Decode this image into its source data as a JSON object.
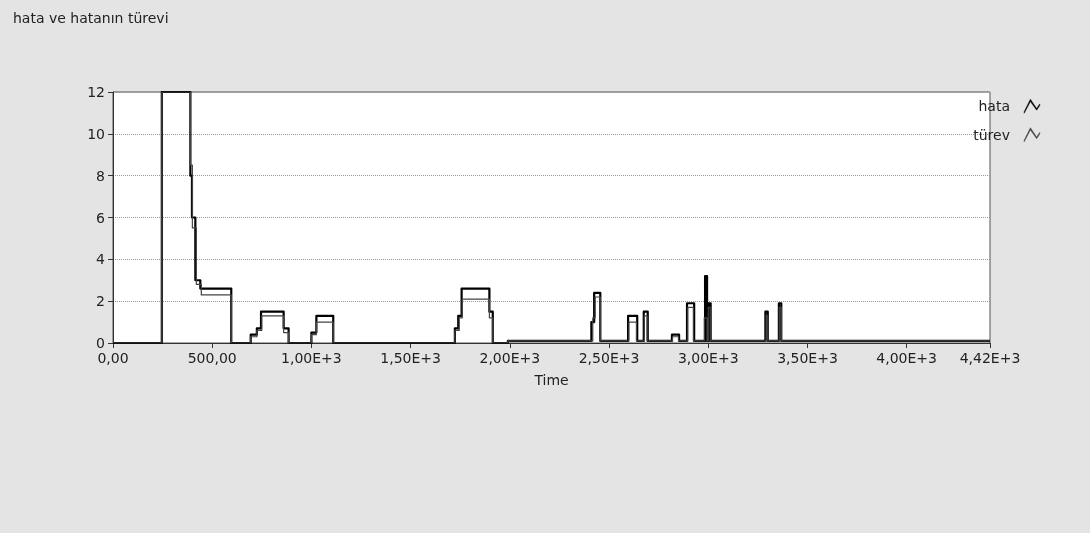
{
  "chart_data": {
    "type": "step",
    "title": "hata ve hatanın türevi",
    "xlabel": "Time",
    "xlim": [
      0,
      4420
    ],
    "xticks": [
      {
        "value": 0,
        "label": "0,00"
      },
      {
        "value": 500,
        "label": "500,00"
      },
      {
        "value": 1000,
        "label": "1,00E+3"
      },
      {
        "value": 1500,
        "label": "1,50E+3"
      },
      {
        "value": 2000,
        "label": "2,00E+3"
      },
      {
        "value": 2500,
        "label": "2,50E+3"
      },
      {
        "value": 3000,
        "label": "3,00E+3"
      },
      {
        "value": 3500,
        "label": "3,50E+3"
      },
      {
        "value": 4000,
        "label": "4,00E+3"
      },
      {
        "value": 4420,
        "label": "4,42E+3"
      }
    ],
    "ylim": [
      0,
      12
    ],
    "yticks": [
      0,
      2,
      4,
      6,
      8,
      10,
      12
    ],
    "grid": "y",
    "legend": "top right",
    "marker": "none",
    "line_style": "solid",
    "series": [
      {
        "name": "hata",
        "color": "#000000",
        "x": [
          0,
          246,
          390,
          398,
          415,
          440,
          596,
          694,
          725,
          746,
          860,
          885,
          1000,
          1025,
          1110,
          1723,
          1740,
          1757,
          1897,
          1914,
          1990,
          2411,
          2425,
          2456,
          2596,
          2642,
          2675,
          2695,
          2817,
          2853,
          2893,
          2929,
          2984,
          2994,
          3002,
          3012,
          3288,
          3300,
          3356,
          3368,
          4420
        ],
        "values": [
          0,
          12,
          8,
          6,
          3,
          2.6,
          0,
          0.4,
          0.7,
          1.5,
          0.7,
          0,
          0.5,
          1.3,
          0,
          0.7,
          1.3,
          2.6,
          1.5,
          0,
          0.1,
          1,
          2.4,
          0.1,
          1.3,
          0.1,
          1.5,
          0.1,
          0.4,
          0.1,
          1.9,
          0.1,
          3.2,
          0.1,
          1.9,
          0.1,
          1.5,
          0.1,
          1.9,
          0.1,
          0.1
        ]
      },
      {
        "name": "türev",
        "color": "#444444",
        "x": [
          0,
          246,
          390,
          400,
          420,
          445,
          596,
          694,
          725,
          750,
          860,
          885,
          1000,
          1025,
          1110,
          1723,
          1745,
          1760,
          1897,
          1914,
          1990,
          2418,
          2430,
          2456,
          2600,
          2638,
          2678,
          2692,
          2820,
          2850,
          2897,
          2925,
          2980,
          2994,
          3000,
          3010,
          3292,
          3300,
          3358,
          3368,
          4420
        ],
        "values": [
          0,
          12,
          8.5,
          5.5,
          2.8,
          2.3,
          0,
          0.3,
          0.6,
          1.3,
          0.5,
          0,
          0.4,
          1,
          0,
          0.6,
          1.2,
          2.1,
          1.2,
          0,
          0.1,
          1.2,
          2.2,
          0.1,
          1,
          0.1,
          1.3,
          0.1,
          0.3,
          0.1,
          1.7,
          0.1,
          1.2,
          0.1,
          1.7,
          0.1,
          1.3,
          0.1,
          1.7,
          0.1,
          0.1
        ]
      }
    ]
  }
}
